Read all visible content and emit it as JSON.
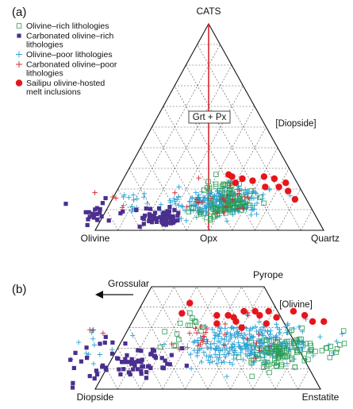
{
  "colors": {
    "olivine_rich": "#2a9d52",
    "carbonated_olivine_rich": "#4b2f8f",
    "olivine_poor": "#2aa4d8",
    "carbonated_olivine_poor": "#d7262c",
    "sailipu": "#e8141c",
    "grid": "#555555",
    "opx_line": "#d7262c"
  },
  "chart_data": [
    {
      "type": "scatter",
      "diagram": "ternary",
      "panel_label": "(a)",
      "vertices": {
        "top": "CATS",
        "left": "Olivine",
        "right": "Quartz"
      },
      "projected_from": "[Diopside]",
      "axis_marks": [
        "Opx"
      ],
      "annotations": [
        "Grt + Px"
      ],
      "legend": [
        {
          "label": "Olivine–rich lithologies",
          "marker": "open-square",
          "color": "#2a9d52"
        },
        {
          "label": "Carbonated olivine–rich lithologies",
          "marker": "filled-square",
          "color": "#4b2f8f"
        },
        {
          "label": "Olivine–poor lithologies",
          "marker": "plus",
          "color": "#2aa4d8"
        },
        {
          "label": "Carbonated olivine–poor lithologies",
          "marker": "plus",
          "color": "#d7262c"
        },
        {
          "label": "Sailipu olivine-hosted melt inclusions",
          "marker": "filled-circle",
          "color": "#e8141c"
        }
      ],
      "grid_divisions": 10,
      "series": [
        {
          "name": "Olivine–rich lithologies",
          "clusters": [
            {
              "center": [
                0.52,
                0.12
              ],
              "spread": [
                0.1,
                0.06
              ],
              "n": 85
            },
            {
              "center": [
                0.44,
                0.22
              ],
              "spread": [
                0.07,
                0.03
              ],
              "n": 20
            }
          ]
        },
        {
          "name": "Carbonated olivine–rich lithologies",
          "clusters": [
            {
              "center": [
                0.27,
                0.06
              ],
              "spread": [
                0.09,
                0.04
              ],
              "n": 55
            },
            {
              "center": [
                -0.03,
                0.09
              ],
              "spread": [
                0.1,
                0.06
              ],
              "n": 22
            }
          ]
        },
        {
          "name": "Olivine–poor lithologies",
          "clusters": [
            {
              "center": [
                0.48,
                0.14
              ],
              "spread": [
                0.15,
                0.06
              ],
              "n": 260
            },
            {
              "center": [
                0.12,
                0.13
              ],
              "spread": [
                0.09,
                0.06
              ],
              "n": 18
            }
          ]
        },
        {
          "name": "Carbonated olivine–poor lithologies",
          "clusters": [
            {
              "center": [
                0.48,
                0.16
              ],
              "spread": [
                0.18,
                0.07
              ],
              "n": 22
            },
            {
              "center": [
                0.05,
                0.16
              ],
              "spread": [
                0.1,
                0.05
              ],
              "n": 4
            }
          ]
        },
        {
          "name": "Sailipu olivine-hosted melt inclusions",
          "points": [
            [
              0.45,
              0.27
            ],
            [
              0.52,
              0.25
            ],
            [
              0.57,
              0.24
            ],
            [
              0.61,
              0.26
            ],
            [
              0.64,
              0.21
            ],
            [
              0.7,
              0.21
            ],
            [
              0.75,
              0.19
            ],
            [
              0.8,
              0.15
            ],
            [
              0.5,
              0.23
            ],
            [
              0.66,
              0.25
            ],
            [
              0.47,
              0.26
            ],
            [
              0.72,
              0.23
            ]
          ]
        }
      ]
    },
    {
      "type": "scatter",
      "diagram": "ternary-truncated",
      "panel_label": "(b)",
      "vertices": {
        "top": "Pyrope",
        "left": "Diopside",
        "right": "Enstatite"
      },
      "projected_from": "[Olivine]",
      "arrow_label": "Grossular",
      "grid_divisions": 10,
      "truncated_at": 0.5,
      "series": [
        {
          "name": "Olivine–rich lithologies",
          "clusters": [
            {
              "center": [
                0.74,
                0.18
              ],
              "spread": [
                0.13,
                0.07
              ],
              "n": 95
            },
            {
              "center": [
                0.25,
                0.3
              ],
              "spread": [
                0.1,
                0.08
              ],
              "n": 15
            },
            {
              "center": [
                0.96,
                0.22
              ],
              "spread": [
                0.04,
                0.08
              ],
              "n": 12
            }
          ]
        },
        {
          "name": "Carbonated olivine–rich lithologies",
          "clusters": [
            {
              "center": [
                0.13,
                0.12
              ],
              "spread": [
                0.14,
                0.07
              ],
              "n": 62
            },
            {
              "center": [
                -0.12,
                0.13
              ],
              "spread": [
                0.07,
                0.09
              ],
              "n": 14
            }
          ]
        },
        {
          "name": "Olivine–poor lithologies",
          "clusters": [
            {
              "center": [
                0.58,
                0.22
              ],
              "spread": [
                0.22,
                0.08
              ],
              "n": 290
            },
            {
              "center": [
                -0.1,
                0.2
              ],
              "spread": [
                0.1,
                0.1
              ],
              "n": 14
            }
          ]
        },
        {
          "name": "Carbonated olivine–poor lithologies",
          "clusters": [
            {
              "center": [
                0.4,
                0.26
              ],
              "spread": [
                0.22,
                0.08
              ],
              "n": 28
            },
            {
              "center": [
                -0.14,
                0.28
              ],
              "spread": [
                0.06,
                0.03
              ],
              "n": 3
            }
          ]
        },
        {
          "name": "Sailipu olivine-hosted melt inclusions",
          "points": [
            [
              0.21,
              0.42
            ],
            [
              0.2,
              0.37
            ],
            [
              0.36,
              0.36
            ],
            [
              0.41,
              0.36
            ],
            [
              0.44,
              0.35
            ],
            [
              0.47,
              0.38
            ],
            [
              0.52,
              0.38
            ],
            [
              0.55,
              0.36
            ],
            [
              0.58,
              0.38
            ],
            [
              0.63,
              0.35
            ],
            [
              0.69,
              0.38
            ],
            [
              0.75,
              0.36
            ],
            [
              0.8,
              0.33
            ],
            [
              0.85,
              0.33
            ],
            [
              0.46,
              0.33
            ],
            [
              0.6,
              0.32
            ],
            [
              0.5,
              0.3
            ],
            [
              0.38,
              0.32
            ]
          ]
        }
      ]
    }
  ]
}
